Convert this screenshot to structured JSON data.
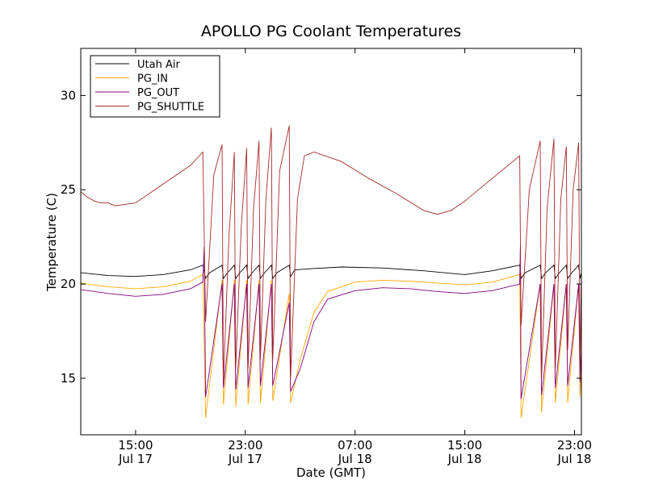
{
  "chart_data": {
    "type": "line",
    "title": "APOLLO PG Coolant Temperatures",
    "xlabel": "Date (GMT)",
    "ylabel": "Temperature (C)",
    "x_unit": "hours since Jul 17 00:00 GMT",
    "xlim": [
      11,
      47.5
    ],
    "ylim": [
      12,
      32.5
    ],
    "yticks": [
      15,
      20,
      25,
      30
    ],
    "xticks": [
      {
        "value": 15,
        "time": "15:00",
        "date": "Jul 17"
      },
      {
        "value": 23,
        "time": "23:00",
        "date": "Jul 17"
      },
      {
        "value": 31,
        "time": "07:00",
        "date": "Jul 18"
      },
      {
        "value": 39,
        "time": "15:00",
        "date": "Jul 18"
      },
      {
        "value": 47,
        "time": "23:00",
        "date": "Jul 18"
      }
    ],
    "legend_position": "top-left",
    "series": [
      {
        "name": "Utah Air",
        "color": "#000000",
        "points": [
          [
            11,
            20.6
          ],
          [
            13,
            20.45
          ],
          [
            15,
            20.4
          ],
          [
            17,
            20.5
          ],
          [
            19,
            20.75
          ],
          [
            19.9,
            21.0
          ],
          [
            20.1,
            20.3
          ],
          [
            20.4,
            20.6
          ],
          [
            21.3,
            21.0
          ],
          [
            21.4,
            20.3
          ],
          [
            21.7,
            20.6
          ],
          [
            22.2,
            21.0
          ],
          [
            22.3,
            20.3
          ],
          [
            22.6,
            20.6
          ],
          [
            23.1,
            21.0
          ],
          [
            23.2,
            20.3
          ],
          [
            23.5,
            20.6
          ],
          [
            24.0,
            21.0
          ],
          [
            24.1,
            20.3
          ],
          [
            24.4,
            20.6
          ],
          [
            24.9,
            21.0
          ],
          [
            25.0,
            20.3
          ],
          [
            25.3,
            20.6
          ],
          [
            26.2,
            21.0
          ],
          [
            26.3,
            20.4
          ],
          [
            26.6,
            20.75
          ],
          [
            27.5,
            20.8
          ],
          [
            30,
            20.9
          ],
          [
            33,
            20.85
          ],
          [
            36,
            20.7
          ],
          [
            39,
            20.5
          ],
          [
            41,
            20.7
          ],
          [
            43.0,
            21.0
          ],
          [
            43.1,
            20.3
          ],
          [
            43.4,
            20.6
          ],
          [
            44.5,
            21.0
          ],
          [
            44.6,
            20.3
          ],
          [
            44.9,
            20.6
          ],
          [
            45.5,
            21.0
          ],
          [
            45.6,
            20.3
          ],
          [
            45.9,
            20.6
          ],
          [
            46.4,
            21.0
          ],
          [
            46.5,
            20.3
          ],
          [
            46.8,
            20.6
          ],
          [
            47.3,
            21.0
          ],
          [
            47.4,
            20.3
          ],
          [
            47.5,
            20.6
          ]
        ]
      },
      {
        "name": "PG_IN",
        "color": "#ffa500",
        "points": [
          [
            11,
            20.05
          ],
          [
            13,
            19.85
          ],
          [
            15,
            19.75
          ],
          [
            17,
            19.85
          ],
          [
            19,
            20.15
          ],
          [
            19.9,
            20.5
          ],
          [
            20.1,
            12.9
          ],
          [
            21.3,
            20.2
          ],
          [
            21.4,
            13.6
          ],
          [
            22.2,
            20.2
          ],
          [
            22.3,
            13.5
          ],
          [
            23.1,
            20.2
          ],
          [
            23.2,
            13.6
          ],
          [
            24.0,
            20.2
          ],
          [
            24.1,
            13.7
          ],
          [
            24.9,
            20.2
          ],
          [
            25.0,
            13.8
          ],
          [
            26.2,
            19.5
          ],
          [
            26.3,
            13.7
          ],
          [
            27,
            16.0
          ],
          [
            28,
            18.5
          ],
          [
            29,
            19.6
          ],
          [
            31,
            20.1
          ],
          [
            33,
            20.2
          ],
          [
            35,
            20.15
          ],
          [
            37,
            20.05
          ],
          [
            39,
            19.95
          ],
          [
            41,
            20.1
          ],
          [
            43.0,
            20.5
          ],
          [
            43.1,
            12.9
          ],
          [
            44.5,
            20.0
          ],
          [
            44.6,
            13.2
          ],
          [
            45.5,
            20.0
          ],
          [
            45.6,
            13.7
          ],
          [
            46.4,
            20.0
          ],
          [
            46.5,
            13.7
          ],
          [
            47.3,
            20.0
          ],
          [
            47.4,
            14.0
          ],
          [
            47.5,
            15.5
          ]
        ]
      },
      {
        "name": "PG_OUT",
        "color": "#800080",
        "points": [
          [
            11,
            19.7
          ],
          [
            13,
            19.5
          ],
          [
            15,
            19.35
          ],
          [
            17,
            19.45
          ],
          [
            19,
            19.75
          ],
          [
            19.9,
            20.1
          ],
          [
            20.0,
            22.0
          ],
          [
            20.1,
            14.0
          ],
          [
            21.3,
            20.0
          ],
          [
            21.4,
            14.5
          ],
          [
            22.2,
            20.0
          ],
          [
            22.3,
            14.4
          ],
          [
            23.1,
            20.0
          ],
          [
            23.2,
            14.5
          ],
          [
            24.0,
            20.0
          ],
          [
            24.1,
            14.6
          ],
          [
            24.9,
            20.0
          ],
          [
            25.0,
            14.6
          ],
          [
            26.2,
            19.0
          ],
          [
            26.3,
            14.3
          ],
          [
            27,
            15.5
          ],
          [
            28,
            18.0
          ],
          [
            29,
            19.2
          ],
          [
            31,
            19.65
          ],
          [
            33,
            19.8
          ],
          [
            35,
            19.75
          ],
          [
            37,
            19.6
          ],
          [
            39,
            19.5
          ],
          [
            41,
            19.65
          ],
          [
            43.0,
            20.0
          ],
          [
            43.05,
            22.0
          ],
          [
            43.1,
            13.9
          ],
          [
            44.5,
            20.0
          ],
          [
            44.6,
            14.1
          ],
          [
            45.5,
            20.0
          ],
          [
            45.6,
            14.5
          ],
          [
            46.4,
            20.0
          ],
          [
            46.5,
            14.6
          ],
          [
            47.3,
            20.0
          ],
          [
            47.4,
            14.8
          ],
          [
            47.5,
            16.5
          ]
        ]
      },
      {
        "name": "PG_SHUTTLE",
        "color": "#a52a2a",
        "points": [
          [
            11,
            24.9
          ],
          [
            11.5,
            24.6
          ],
          [
            12,
            24.4
          ],
          [
            12.5,
            24.3
          ],
          [
            13,
            24.3
          ],
          [
            13.5,
            24.15
          ],
          [
            14,
            24.2
          ],
          [
            15,
            24.3
          ],
          [
            16,
            24.8
          ],
          [
            17,
            25.3
          ],
          [
            18,
            25.8
          ],
          [
            19,
            26.3
          ],
          [
            19.9,
            27.0
          ],
          [
            20.1,
            18.0
          ],
          [
            20.7,
            25.8
          ],
          [
            21.3,
            27.4
          ],
          [
            21.4,
            14.8
          ],
          [
            21.8,
            22.5
          ],
          [
            22.2,
            27.0
          ],
          [
            22.3,
            15.5
          ],
          [
            22.7,
            23.0
          ],
          [
            23.1,
            27.2
          ],
          [
            23.2,
            15.5
          ],
          [
            23.6,
            24.0
          ],
          [
            24.0,
            27.6
          ],
          [
            24.1,
            16.0
          ],
          [
            24.5,
            24.5
          ],
          [
            24.9,
            28.3
          ],
          [
            25.0,
            16.0
          ],
          [
            25.5,
            26.0
          ],
          [
            26.2,
            28.4
          ],
          [
            26.3,
            15.0
          ],
          [
            26.8,
            24.5
          ],
          [
            27.3,
            26.8
          ],
          [
            28,
            27.0
          ],
          [
            30,
            26.5
          ],
          [
            32,
            25.6
          ],
          [
            34,
            24.8
          ],
          [
            36,
            23.9
          ],
          [
            37,
            23.7
          ],
          [
            38,
            23.9
          ],
          [
            39,
            24.4
          ],
          [
            41,
            25.6
          ],
          [
            43.0,
            26.8
          ],
          [
            43.1,
            17.8
          ],
          [
            43.7,
            25.0
          ],
          [
            44.5,
            27.6
          ],
          [
            44.6,
            15.0
          ],
          [
            45.0,
            24.0
          ],
          [
            45.5,
            27.7
          ],
          [
            45.6,
            15.5
          ],
          [
            46.0,
            24.5
          ],
          [
            46.4,
            27.3
          ],
          [
            46.5,
            16.5
          ],
          [
            46.9,
            25.0
          ],
          [
            47.3,
            27.5
          ],
          [
            47.4,
            15.0
          ],
          [
            47.5,
            21.0
          ]
        ]
      }
    ]
  }
}
